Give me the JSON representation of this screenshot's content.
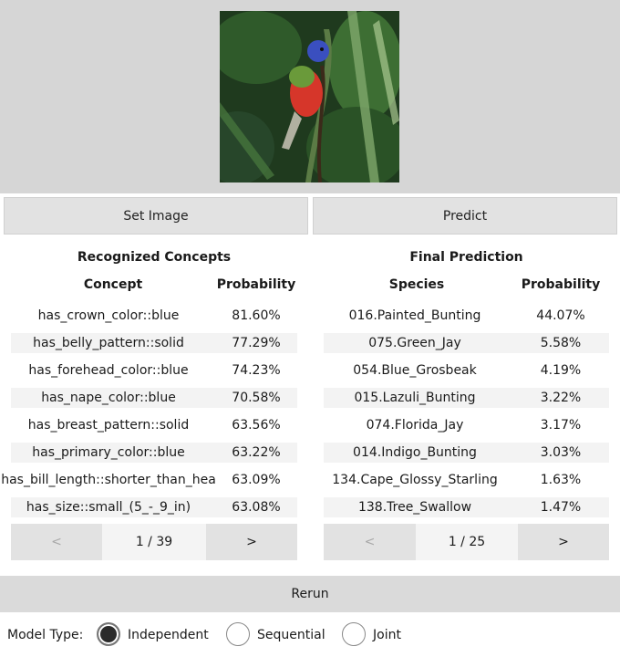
{
  "top": {
    "set_image_label": "Set Image",
    "predict_label": "Predict"
  },
  "concepts": {
    "title": "Recognized Concepts",
    "col_concept": "Concept",
    "col_prob": "Probability",
    "rows": [
      {
        "name": "has_crown_color::blue",
        "prob": "81.60%"
      },
      {
        "name": "has_belly_pattern::solid",
        "prob": "77.29%"
      },
      {
        "name": "has_forehead_color::blue",
        "prob": "74.23%"
      },
      {
        "name": "has_nape_color::blue",
        "prob": "70.58%"
      },
      {
        "name": "has_breast_pattern::solid",
        "prob": "63.56%"
      },
      {
        "name": "has_primary_color::blue",
        "prob": "63.22%"
      },
      {
        "name": "has_bill_length::shorter_than_hea",
        "prob": "63.09%"
      },
      {
        "name": "has_size::small_(5_-_9_in)",
        "prob": "63.08%"
      }
    ],
    "pager": {
      "prev": "<",
      "page": "1 / 39",
      "next": ">"
    }
  },
  "prediction": {
    "title": "Final Prediction",
    "col_species": "Species",
    "col_prob": "Probability",
    "rows": [
      {
        "name": "016.Painted_Bunting",
        "prob": "44.07%"
      },
      {
        "name": "075.Green_Jay",
        "prob": "5.58%"
      },
      {
        "name": "054.Blue_Grosbeak",
        "prob": "4.19%"
      },
      {
        "name": "015.Lazuli_Bunting",
        "prob": "3.22%"
      },
      {
        "name": "074.Florida_Jay",
        "prob": "3.17%"
      },
      {
        "name": "014.Indigo_Bunting",
        "prob": "3.03%"
      },
      {
        "name": "134.Cape_Glossy_Starling",
        "prob": "1.63%"
      },
      {
        "name": "138.Tree_Swallow",
        "prob": "1.47%"
      }
    ],
    "pager": {
      "prev": "<",
      "page": "1 / 25",
      "next": ">"
    }
  },
  "rerun_label": "Rerun",
  "model_type": {
    "label": "Model Type:",
    "options": [
      "Independent",
      "Sequential",
      "Joint"
    ],
    "selected": "Independent"
  }
}
